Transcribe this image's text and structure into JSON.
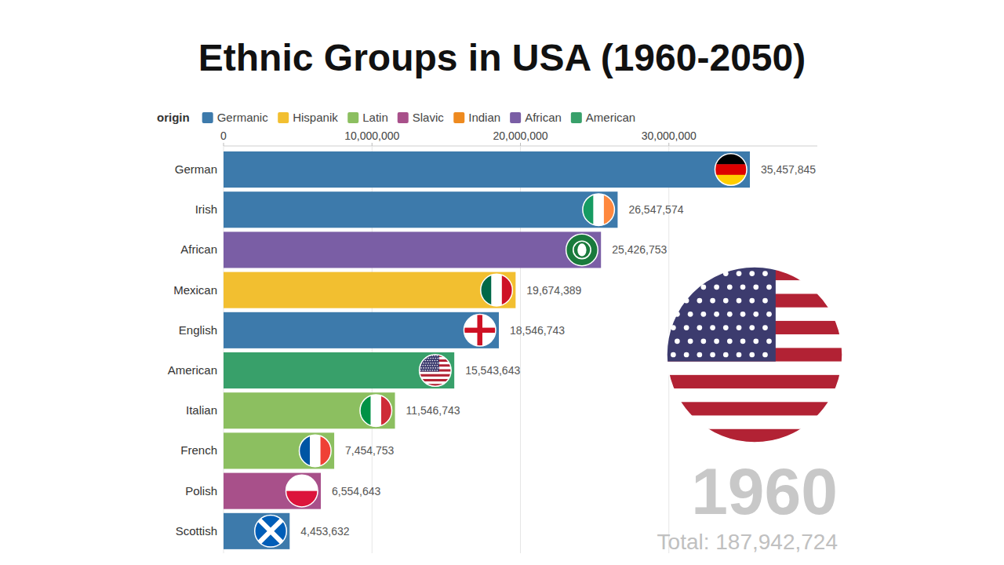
{
  "chart_data": {
    "type": "bar",
    "title": "Ethnic Groups in USA (1960-2050)",
    "orientation": "horizontal",
    "categories": [
      "German",
      "Irish",
      "African",
      "Mexican",
      "English",
      "American",
      "Italian",
      "French",
      "Polish",
      "Scottish"
    ],
    "values": [
      35457845,
      26547574,
      25426753,
      19674389,
      18546743,
      15543643,
      11546743,
      7454753,
      6554643,
      4453632
    ],
    "value_labels": [
      "35,457,845",
      "26,547,574",
      "25,426,753",
      "19,674,389",
      "18,546,743",
      "15,543,643",
      "11,546,743",
      "7,454,753",
      "6,554,643",
      "4,453,632"
    ],
    "colors": [
      "#3d7aab",
      "#3d7aab",
      "#7a5ea5",
      "#f2bf30",
      "#3d7aab",
      "#38a06a",
      "#8cbf60",
      "#8cbf60",
      "#a8508a",
      "#3d7aab"
    ],
    "xlim": [
      0,
      40000000
    ],
    "xticks": [
      0,
      {
        "value": 10000000,
        "label": "10,000,000"
      },
      {
        "value": 20000000,
        "label": "20,000,000"
      },
      {
        "value": 30000000,
        "label": "30,000,000"
      }
    ],
    "grid": true,
    "data_labels": true,
    "legend": "top",
    "legend_title": "origin",
    "legend_items": [
      {
        "name": "Germanic",
        "color": "#3d7aab"
      },
      {
        "name": "Hispanik",
        "color": "#f2bf30"
      },
      {
        "name": "Latin",
        "color": "#8cbf60"
      },
      {
        "name": "Slavic",
        "color": "#a8508a"
      },
      {
        "name": "Indian",
        "color": "#ee8a1f"
      },
      {
        "name": "African",
        "color": "#7a5ea5"
      },
      {
        "name": "American",
        "color": "#38a06a"
      }
    ],
    "annotations": [
      "1960",
      "Total: 187,942,724"
    ]
  }
}
